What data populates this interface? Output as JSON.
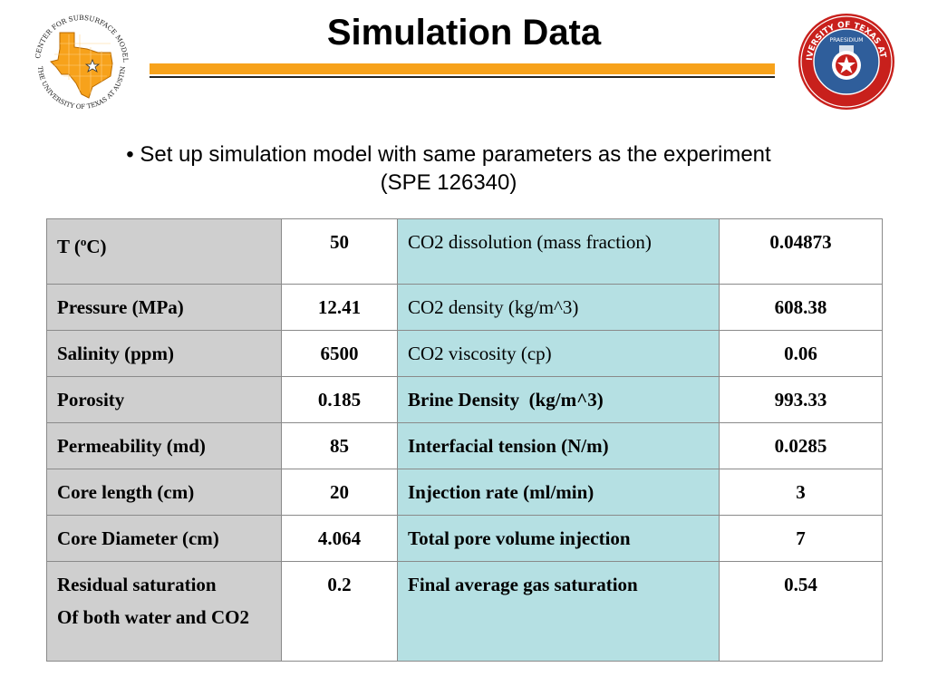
{
  "slide": {
    "title": "Simulation Data",
    "bullet_line1": "• Set up simulation model with same parameters as the experiment",
    "bullet_line2": "(SPE 126340)",
    "colors": {
      "accent_bar": "#f7a21b",
      "left_col_bg": "#cfcfcf",
      "mid_col_bg": "#b5e0e3",
      "seal_red": "#c8201c"
    }
  },
  "logos": {
    "left": {
      "icon": "texas-map-star-icon",
      "ring_text_top": "THE CENTER FOR SUBSURFACE MODELING",
      "ring_text_bottom": "THE UNIVERSITY OF TEXAS AT AUSTIN"
    },
    "right": {
      "icon": "university-seal-icon",
      "ring_text": "THE UNIVERSITY OF TEXAS AT AUSTIN",
      "inner_text": "PRAESIDIUM"
    }
  },
  "table": {
    "rows": [
      {
        "label": "T (",
        "label_sup": "o",
        "label_tail": "C)",
        "value": "50",
        "prop": "CO2 dissolution (mass fraction)",
        "prop_bold": false,
        "prop_value": "0.04873"
      },
      {
        "label": "Pressure (MPa)",
        "value": "12.41",
        "prop": "CO2 density (kg/m^3)",
        "prop_bold": false,
        "prop_value": "608.38"
      },
      {
        "label": "Salinity (ppm)",
        "value": "6500",
        "prop": "CO2 viscosity (cp)",
        "prop_bold": false,
        "prop_value": "0.06"
      },
      {
        "label": "Porosity",
        "value": "0.185",
        "prop": "Brine Density  (kg/m^3)",
        "prop_bold": true,
        "prop_value": "993.33"
      },
      {
        "label": "Permeability (md)",
        "value": "85",
        "prop": "Interfacial tension (N/m)",
        "prop_bold": true,
        "prop_value": "0.0285"
      },
      {
        "label": "Core length (cm)",
        "value": "20",
        "prop": "Injection rate (ml/min)",
        "prop_bold": true,
        "prop_value": "3"
      },
      {
        "label": "Core Diameter (cm)",
        "value": "4.064",
        "prop": "Total pore volume injection",
        "prop_bold": true,
        "prop_value": "7"
      },
      {
        "label": "Residual saturation",
        "label_line2": "Of both water and CO2",
        "value": "0.2",
        "prop": "Final average gas saturation",
        "prop_bold": true,
        "prop_value": "0.54"
      }
    ]
  }
}
